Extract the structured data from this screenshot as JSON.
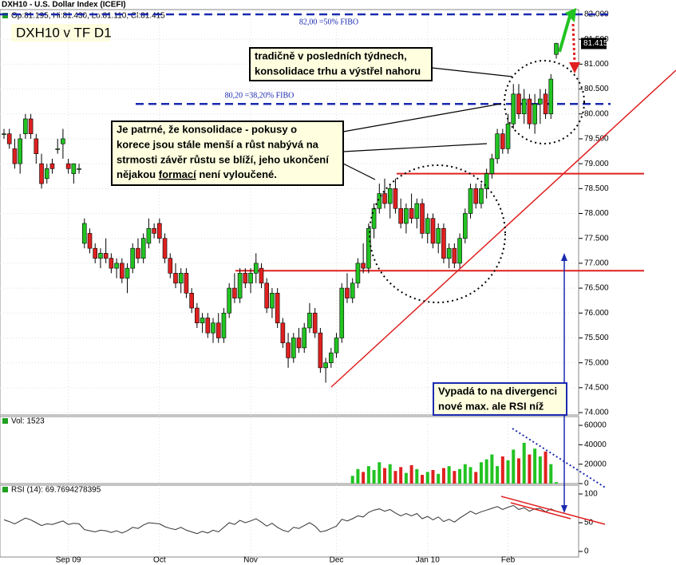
{
  "chart_data": {
    "type": "candlestick",
    "title": "DXH10 - U.S. Dollar Index (ICEFI)",
    "subtitle": "Op:81.195, Hi:81.430, Lo:81.110, Cl:81.415",
    "label": "DXH10 v TF D1",
    "up_color": "#22c322",
    "down_color": "#e02020",
    "ohlc": [
      [
        79.6,
        79.7,
        79.5,
        79.6
      ],
      [
        79.6,
        79.7,
        79.3,
        79.4
      ],
      [
        79.3,
        79.5,
        78.9,
        79.0
      ],
      [
        79.0,
        79.6,
        78.8,
        79.5
      ],
      [
        79.6,
        80.0,
        79.5,
        79.9
      ],
      [
        79.9,
        80.0,
        79.5,
        79.6
      ],
      [
        79.5,
        79.6,
        79.0,
        79.2
      ],
      [
        79.0,
        79.2,
        78.5,
        78.6
      ],
      [
        78.7,
        79.0,
        78.6,
        78.9
      ],
      [
        79.0,
        79.1,
        78.8,
        78.9
      ],
      [
        79.3,
        79.5,
        79.2,
        79.3
      ],
      [
        79.4,
        79.7,
        79.1,
        79.5
      ],
      [
        79.0,
        79.1,
        78.8,
        78.9
      ],
      [
        78.8,
        79.0,
        78.6,
        79.0
      ],
      [
        78.9,
        79.0,
        78.8,
        78.9
      ],
      [
        77.4,
        77.9,
        77.3,
        77.8
      ],
      [
        77.6,
        77.7,
        77.2,
        77.3
      ],
      [
        77.3,
        77.4,
        77.0,
        77.1
      ],
      [
        77.1,
        77.3,
        76.9,
        77.2
      ],
      [
        77.2,
        77.5,
        77.0,
        77.1
      ],
      [
        77.1,
        77.2,
        76.8,
        76.9
      ],
      [
        76.9,
        77.1,
        76.7,
        77.0
      ],
      [
        77.0,
        77.1,
        76.6,
        76.7
      ],
      [
        76.7,
        77.0,
        76.4,
        76.9
      ],
      [
        76.9,
        77.4,
        76.8,
        77.3
      ],
      [
        77.3,
        77.5,
        77.0,
        77.1
      ],
      [
        77.1,
        77.6,
        77.0,
        77.5
      ],
      [
        77.4,
        77.9,
        77.3,
        77.7
      ],
      [
        77.7,
        77.8,
        77.5,
        77.6
      ],
      [
        77.8,
        77.9,
        77.4,
        77.5
      ],
      [
        77.5,
        77.6,
        77.0,
        77.1
      ],
      [
        77.1,
        77.2,
        76.7,
        76.8
      ],
      [
        76.8,
        77.0,
        76.5,
        76.6
      ],
      [
        76.6,
        76.9,
        76.4,
        76.8
      ],
      [
        76.8,
        76.9,
        76.3,
        76.4
      ],
      [
        76.4,
        76.5,
        76.0,
        76.1
      ],
      [
        76.1,
        76.2,
        75.7,
        75.8
      ],
      [
        75.8,
        76.0,
        75.6,
        75.9
      ],
      [
        75.9,
        76.0,
        75.5,
        75.6
      ],
      [
        75.6,
        75.9,
        75.4,
        75.8
      ],
      [
        75.8,
        76.0,
        75.4,
        75.5
      ],
      [
        75.5,
        76.1,
        75.4,
        76.0
      ],
      [
        76.0,
        76.6,
        75.9,
        76.5
      ],
      [
        76.5,
        76.8,
        76.2,
        76.3
      ],
      [
        76.3,
        76.9,
        76.2,
        76.8
      ],
      [
        76.8,
        76.9,
        76.5,
        76.6
      ],
      [
        76.6,
        76.9,
        76.4,
        76.8
      ],
      [
        76.8,
        77.2,
        76.6,
        77.0
      ],
      [
        76.9,
        77.0,
        76.5,
        76.6
      ],
      [
        76.6,
        76.7,
        76.0,
        76.1
      ],
      [
        76.1,
        76.5,
        75.9,
        76.4
      ],
      [
        76.4,
        76.5,
        75.7,
        75.8
      ],
      [
        75.8,
        75.9,
        75.3,
        75.4
      ],
      [
        75.4,
        75.6,
        74.9,
        75.1
      ],
      [
        75.1,
        75.6,
        75.0,
        75.5
      ],
      [
        75.5,
        75.7,
        75.2,
        75.3
      ],
      [
        75.3,
        75.8,
        75.2,
        75.7
      ],
      [
        75.7,
        76.2,
        75.6,
        76.0
      ],
      [
        76.0,
        76.1,
        75.5,
        75.6
      ],
      [
        75.6,
        75.7,
        74.8,
        74.9
      ],
      [
        74.9,
        75.1,
        74.6,
        75.0
      ],
      [
        75.0,
        75.3,
        74.9,
        75.2
      ],
      [
        75.2,
        75.6,
        75.1,
        75.5
      ],
      [
        75.5,
        76.6,
        75.4,
        76.5
      ],
      [
        76.5,
        76.8,
        76.2,
        76.3
      ],
      [
        76.3,
        76.7,
        76.2,
        76.6
      ],
      [
        76.6,
        77.1,
        76.5,
        77.0
      ],
      [
        77.0,
        77.4,
        76.8,
        76.9
      ],
      [
        76.9,
        77.8,
        76.8,
        77.7
      ],
      [
        77.7,
        78.2,
        77.5,
        78.1
      ],
      [
        78.1,
        78.6,
        78.0,
        78.4
      ],
      [
        78.4,
        78.7,
        78.1,
        78.2
      ],
      [
        78.2,
        78.6,
        77.9,
        78.5
      ],
      [
        78.5,
        78.7,
        78.0,
        78.1
      ],
      [
        78.1,
        78.3,
        77.7,
        77.8
      ],
      [
        77.8,
        78.2,
        77.6,
        78.1
      ],
      [
        78.1,
        78.4,
        77.8,
        77.9
      ],
      [
        77.9,
        78.3,
        77.7,
        78.2
      ],
      [
        78.2,
        78.3,
        77.5,
        77.6
      ],
      [
        77.6,
        78.0,
        77.4,
        77.9
      ],
      [
        77.9,
        78.0,
        77.3,
        77.4
      ],
      [
        77.4,
        77.8,
        77.2,
        77.7
      ],
      [
        77.7,
        77.8,
        77.0,
        77.1
      ],
      [
        77.1,
        77.4,
        76.9,
        77.3
      ],
      [
        77.3,
        77.4,
        76.9,
        77.0
      ],
      [
        77.0,
        77.6,
        76.9,
        77.5
      ],
      [
        77.5,
        78.1,
        77.4,
        78.0
      ],
      [
        78.0,
        78.6,
        77.9,
        78.5
      ],
      [
        78.5,
        78.6,
        78.1,
        78.2
      ],
      [
        78.2,
        78.6,
        78.1,
        78.5
      ],
      [
        78.5,
        78.9,
        78.3,
        78.8
      ],
      [
        78.8,
        79.2,
        78.7,
        79.1
      ],
      [
        79.1,
        79.7,
        79.0,
        79.6
      ],
      [
        79.6,
        79.7,
        79.2,
        79.3
      ],
      [
        79.3,
        80.0,
        79.2,
        79.8
      ],
      [
        79.8,
        80.6,
        79.7,
        80.4
      ],
      [
        80.4,
        80.6,
        79.9,
        80.0
      ],
      [
        80.0,
        80.5,
        79.8,
        80.3
      ],
      [
        80.3,
        80.4,
        79.7,
        79.8
      ],
      [
        79.8,
        80.4,
        79.6,
        80.2
      ],
      [
        80.2,
        80.5,
        79.8,
        80.3
      ],
      [
        80.4,
        80.5,
        79.9,
        80.0
      ],
      [
        80.0,
        80.8,
        79.9,
        80.7
      ],
      [
        81.195,
        81.43,
        81.11,
        81.415
      ]
    ],
    "volume_label": "Vol: 1523",
    "volume": [
      0,
      0,
      0,
      0,
      0,
      0,
      0,
      0,
      0,
      0,
      0,
      0,
      0,
      0,
      0,
      0,
      0,
      0,
      0,
      0,
      0,
      0,
      0,
      0,
      0,
      0,
      0,
      0,
      0,
      0,
      0,
      0,
      0,
      0,
      0,
      0,
      0,
      0,
      0,
      0,
      0,
      0,
      0,
      0,
      0,
      0,
      0,
      0,
      0,
      0,
      0,
      0,
      0,
      0,
      0,
      0,
      0,
      0,
      0,
      0,
      0,
      0,
      0,
      0,
      0,
      8000,
      15000,
      12000,
      18000,
      14000,
      22000,
      16000,
      20000,
      13000,
      17000,
      11000,
      19000,
      15000,
      9000,
      12000,
      14000,
      10000,
      16000,
      18000,
      13000,
      15000,
      20000,
      17000,
      12000,
      22000,
      25000,
      30000,
      18000,
      28000,
      24000,
      35000,
      26000,
      42000,
      30000,
      36000,
      28000,
      33000,
      20000,
      1523
    ],
    "rsi_label": "RSI (14): 69.7694278395",
    "rsi": [
      55,
      52,
      48,
      53,
      58,
      55,
      50,
      45,
      48,
      47,
      50,
      53,
      47,
      49,
      48,
      38,
      36,
      34,
      37,
      36,
      33,
      36,
      32,
      36,
      42,
      40,
      46,
      50,
      49,
      48,
      43,
      40,
      38,
      42,
      37,
      34,
      31,
      35,
      32,
      37,
      34,
      42,
      50,
      47,
      54,
      50,
      53,
      57,
      51,
      44,
      49,
      42,
      37,
      34,
      42,
      40,
      45,
      50,
      44,
      34,
      36,
      40,
      44,
      56,
      53,
      57,
      62,
      60,
      68,
      72,
      74,
      70,
      73,
      67,
      62,
      66,
      62,
      66,
      57,
      61,
      55,
      60,
      52,
      56,
      51,
      58,
      64,
      70,
      65,
      69,
      72,
      75,
      78,
      73,
      77,
      80,
      73,
      76,
      70,
      74,
      75,
      69,
      74,
      69.7694278395
    ],
    "ylim": [
      74,
      82
    ],
    "yticks": [
      {
        "value": 74,
        "label": "74.000"
      },
      {
        "value": 74.5,
        "label": "74.500"
      },
      {
        "value": 75,
        "label": "75.000"
      },
      {
        "value": 75.5,
        "label": "75.500"
      },
      {
        "value": 76,
        "label": "76.000"
      },
      {
        "value": 76.5,
        "label": "76.500"
      },
      {
        "value": 77,
        "label": "77.000"
      },
      {
        "value": 77.5,
        "label": "77.500"
      },
      {
        "value": 78,
        "label": "78.000"
      },
      {
        "value": 78.5,
        "label": "78.500"
      },
      {
        "value": 79,
        "label": "79.000"
      },
      {
        "value": 79.5,
        "label": "79.500"
      },
      {
        "value": 80,
        "label": "80.000"
      },
      {
        "value": 80.5,
        "label": "80.500"
      },
      {
        "value": 81,
        "label": "81.000"
      },
      {
        "value": 81.5,
        "label": "81.500"
      },
      {
        "value": 82,
        "label": "82.000"
      }
    ],
    "vol_lim": [
      0,
      60000
    ],
    "vol_ticks": [
      0,
      20000,
      40000,
      60000
    ],
    "rsi_lim": [
      0,
      100
    ],
    "rsi_ticks": [
      0,
      50,
      100
    ],
    "xticks": [
      {
        "value": 12,
        "label": "Sep 09"
      },
      {
        "value": 29,
        "label": "Oct"
      },
      {
        "value": 46,
        "label": "Nov"
      },
      {
        "value": 62,
        "label": "Dec"
      },
      {
        "value": 79,
        "label": "Jan 10"
      },
      {
        "value": 94,
        "label": "Feb"
      }
    ],
    "fibo": [
      {
        "value": 82.0,
        "label": "82,00 =50% FIBO"
      },
      {
        "value": 80.2,
        "label": "80,20 =38,20% FIBO"
      }
    ],
    "levels": [
      78.8,
      76.85
    ],
    "notes": [
      {
        "lines": [
          "tradičně v posledních týdnech,",
          "konsolidace trhu a výstřel nahoru"
        ]
      },
      {
        "lines": [
          "Je patrné, že konsolidace - pokusy o",
          "korece jsou stále menší a růst nabývá na",
          "strmosti závěr růstu se blíží, jeho ukončení"
        ],
        "last": [
          "nějakou ",
          "formací",
          " není vyloučené."
        ]
      },
      {
        "lines": [
          "Vypadá to na divergenci",
          "nové max. ale RSI níž"
        ]
      }
    ]
  }
}
